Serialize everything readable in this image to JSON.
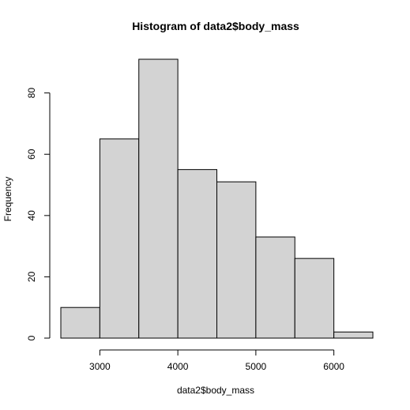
{
  "chart_data": {
    "type": "bar",
    "title": "Histogram of data2$body_mass",
    "xlabel": "data2$body_mass",
    "ylabel": "Frequency",
    "bins": [
      {
        "start": 2500,
        "end": 3000,
        "count": 10
      },
      {
        "start": 3000,
        "end": 3500,
        "count": 65
      },
      {
        "start": 3500,
        "end": 4000,
        "count": 91
      },
      {
        "start": 4000,
        "end": 4500,
        "count": 55
      },
      {
        "start": 4500,
        "end": 5000,
        "count": 51
      },
      {
        "start": 5000,
        "end": 5500,
        "count": 33
      },
      {
        "start": 5500,
        "end": 6000,
        "count": 26
      },
      {
        "start": 6000,
        "end": 6500,
        "count": 2
      }
    ],
    "xlim": [
      2500,
      6500
    ],
    "ylim": [
      0,
      91
    ],
    "x_ticks": [
      3000,
      4000,
      5000,
      6000
    ],
    "y_ticks": [
      0,
      20,
      40,
      60,
      80
    ],
    "grid": false,
    "bar_fill": "#d3d3d3",
    "bar_stroke": "#000000"
  }
}
